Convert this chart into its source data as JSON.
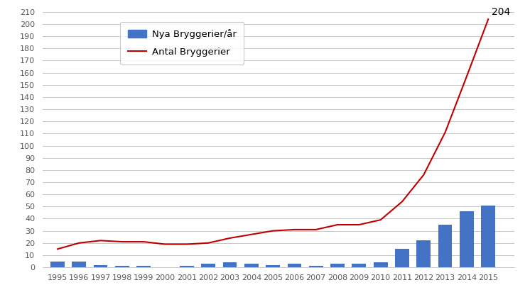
{
  "years": [
    1995,
    1996,
    1997,
    1998,
    1999,
    2000,
    2001,
    2002,
    2003,
    2004,
    2005,
    2006,
    2007,
    2008,
    2009,
    2010,
    2011,
    2012,
    2013,
    2014,
    2015
  ],
  "new_breweries": [
    5,
    5,
    2,
    1,
    1,
    0,
    1,
    3,
    4,
    3,
    2,
    3,
    1,
    3,
    3,
    4,
    15,
    22,
    35,
    46,
    51
  ],
  "total_breweries": [
    15,
    20,
    22,
    21,
    21,
    19,
    19,
    20,
    24,
    27,
    30,
    31,
    31,
    35,
    35,
    39,
    54,
    76,
    111,
    157,
    204
  ],
  "bar_color": "#4472C4",
  "line_color": "#C00000",
  "background_color": "#FFFFFF",
  "ylim": [
    0,
    210
  ],
  "yticks": [
    0,
    10,
    20,
    30,
    40,
    50,
    60,
    70,
    80,
    90,
    100,
    110,
    120,
    130,
    140,
    150,
    160,
    170,
    180,
    190,
    200,
    210
  ],
  "legend_bar_label": "Nya Bryggerier/år",
  "legend_line_label": "Antal Bryggerier",
  "annotation_text": "204",
  "annotation_year": 2015,
  "annotation_value": 204,
  "grid_color": "#BFBFBF",
  "tick_label_color": "#595959",
  "legend_edge_color": "#9DC3E6",
  "bar_width": 0.65,
  "line_width": 1.5,
  "xlim_left": 1994.3,
  "xlim_right": 2016.2
}
